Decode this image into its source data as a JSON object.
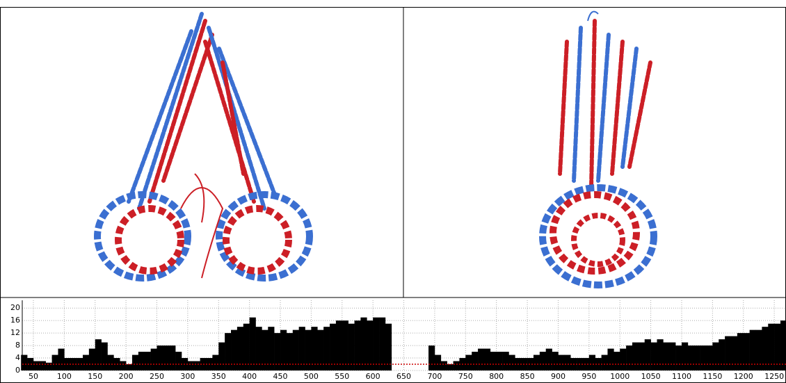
{
  "chart_data": {
    "type": "bar",
    "x": [
      35,
      45,
      55,
      65,
      75,
      85,
      95,
      105,
      115,
      125,
      135,
      145,
      155,
      165,
      175,
      185,
      195,
      205,
      215,
      225,
      235,
      245,
      255,
      265,
      275,
      285,
      295,
      305,
      315,
      325,
      335,
      345,
      355,
      365,
      375,
      385,
      395,
      405,
      415,
      425,
      435,
      445,
      455,
      465,
      475,
      485,
      495,
      505,
      515,
      525,
      535,
      545,
      555,
      565,
      575,
      585,
      595,
      605,
      615,
      625,
      635,
      645,
      655,
      665,
      675,
      685,
      695,
      705,
      715,
      725,
      735,
      745,
      755,
      765,
      775,
      785,
      795,
      805,
      815,
      825,
      835,
      845,
      855,
      865,
      875,
      885,
      895,
      905,
      915,
      925,
      935,
      945,
      955,
      965,
      975,
      985,
      995,
      1005,
      1015,
      1025,
      1035,
      1045,
      1055,
      1065,
      1075,
      1085,
      1095,
      1105,
      1115,
      1125,
      1135,
      1145,
      1155,
      1165,
      1175,
      1185,
      1195,
      1205,
      1215,
      1225,
      1235,
      1245,
      1255,
      1265
    ],
    "values": [
      5,
      4,
      3,
      3,
      2.5,
      5,
      7,
      4,
      4,
      4,
      5,
      7,
      10,
      9,
      5,
      4,
      3,
      2,
      5,
      6,
      6,
      7,
      8,
      8,
      8,
      6,
      4,
      3,
      3,
      4,
      4,
      5,
      9,
      12,
      13,
      14,
      15,
      17,
      14,
      13,
      14,
      12,
      13,
      12,
      13,
      14,
      13,
      14,
      13,
      14,
      15,
      16,
      16,
      15,
      16,
      17,
      16,
      17,
      17,
      15,
      null,
      null,
      null,
      null,
      null,
      null,
      8,
      5,
      3,
      2,
      3,
      4,
      5,
      6,
      7,
      7,
      6,
      6,
      6,
      5,
      4,
      4,
      4,
      5,
      6,
      7,
      6,
      5,
      5,
      4,
      4,
      4,
      5,
      4,
      5,
      7,
      6,
      7,
      8,
      9,
      9,
      10,
      9,
      10,
      9,
      9,
      8,
      9,
      8,
      8,
      8,
      8,
      9,
      10,
      11,
      11,
      12,
      12,
      13,
      13,
      14,
      15,
      15,
      16
    ],
    "color": "#000000",
    "xlim": [
      32,
      1269
    ],
    "xticks": [
      50,
      100,
      150,
      200,
      250,
      300,
      350,
      400,
      450,
      500,
      550,
      600,
      650,
      700,
      750,
      800,
      850,
      900,
      950,
      1000,
      1050,
      1100,
      1150,
      1200,
      1250
    ],
    "ylim": [
      0,
      22.5
    ],
    "yticks": [
      0,
      4,
      8,
      12,
      16,
      20
    ],
    "grid": true,
    "threshold": 2,
    "threshold_color": "#cc0000"
  }
}
